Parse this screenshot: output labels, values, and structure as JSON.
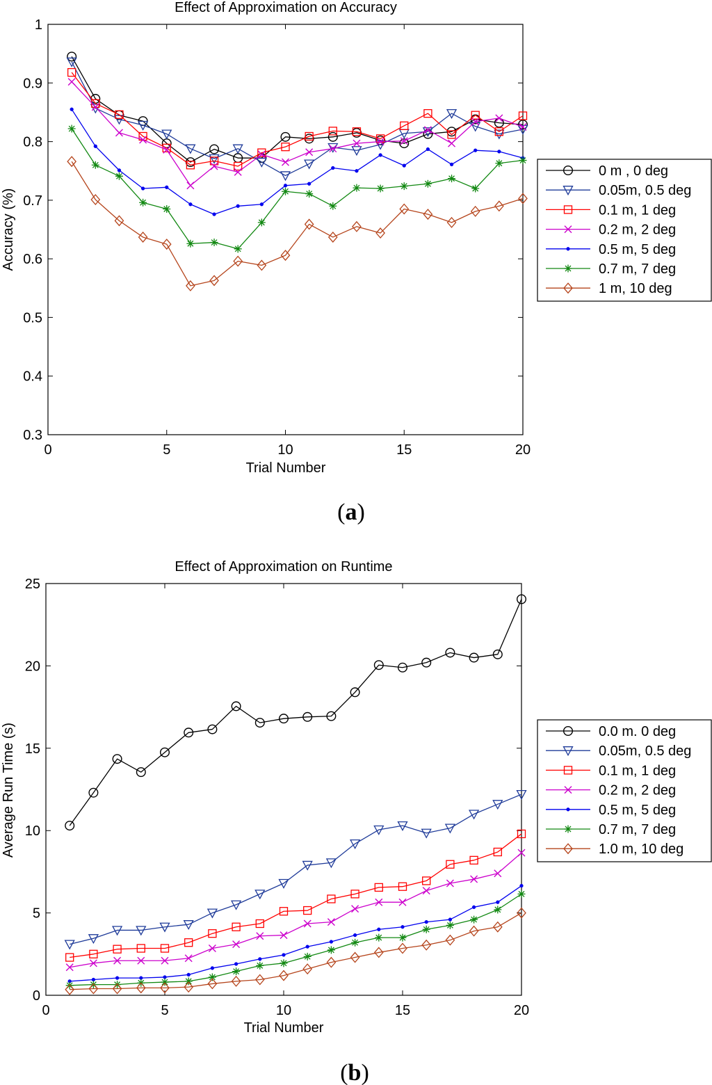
{
  "chart_data": [
    {
      "type": "line",
      "panel_label": "a",
      "title": "Effect of Approximation on Accuracy",
      "xlabel": "Trial Number",
      "ylabel": "Accuracy (%)",
      "xlim": [
        0,
        20
      ],
      "ylim": [
        0.3,
        1.0
      ],
      "xticks": [
        0,
        5,
        10,
        15,
        20
      ],
      "yticks": [
        0.3,
        0.4,
        0.5,
        0.6,
        0.7,
        0.8,
        0.9,
        1.0
      ],
      "ytick_labels": [
        "0.3",
        "0.4",
        "0.5",
        "0.6",
        "0.7",
        "0.8",
        "0.9",
        "1"
      ],
      "grid": false,
      "legend_position": "right",
      "x": [
        1,
        2,
        3,
        4,
        5,
        6,
        7,
        8,
        9,
        10,
        11,
        12,
        13,
        14,
        15,
        16,
        17,
        18,
        19,
        20
      ],
      "series": [
        {
          "name": "0 m , 0 deg",
          "color": "#000000",
          "marker": "circle",
          "values": [
            0.945,
            0.873,
            0.845,
            0.835,
            0.797,
            0.765,
            0.787,
            0.772,
            0.772,
            0.808,
            0.805,
            0.808,
            0.815,
            0.802,
            0.797,
            0.813,
            0.817,
            0.838,
            0.832,
            0.829
          ]
        },
        {
          "name": "0.05m, 0.5 deg",
          "color": "#1f3b99",
          "marker": "triangle-down",
          "values": [
            0.936,
            0.857,
            0.838,
            0.828,
            0.813,
            0.788,
            0.771,
            0.788,
            0.765,
            0.742,
            0.762,
            0.79,
            0.785,
            0.795,
            0.814,
            0.817,
            0.848,
            0.826,
            0.813,
            0.821
          ]
        },
        {
          "name": "0.1 m, 1 deg",
          "color": "#ff0000",
          "marker": "square",
          "values": [
            0.918,
            0.865,
            0.846,
            0.809,
            0.789,
            0.76,
            0.767,
            0.758,
            0.781,
            0.791,
            0.809,
            0.818,
            0.817,
            0.805,
            0.827,
            0.848,
            0.812,
            0.845,
            0.817,
            0.844
          ]
        },
        {
          "name": "0.2 m, 2 deg",
          "color": "#cc00cc",
          "marker": "x",
          "values": [
            0.902,
            0.859,
            0.815,
            0.803,
            0.786,
            0.725,
            0.758,
            0.748,
            0.778,
            0.765,
            0.782,
            0.788,
            0.797,
            0.8,
            0.801,
            0.82,
            0.797,
            0.834,
            0.84,
            0.825
          ]
        },
        {
          "name": "0.5 m, 5 deg",
          "color": "#0000ee",
          "marker": "dot",
          "values": [
            0.855,
            0.792,
            0.751,
            0.72,
            0.722,
            0.693,
            0.676,
            0.69,
            0.693,
            0.725,
            0.728,
            0.755,
            0.75,
            0.777,
            0.759,
            0.787,
            0.761,
            0.785,
            0.783,
            0.772
          ]
        },
        {
          "name": "0.7 m, 7 deg",
          "color": "#118811",
          "marker": "star",
          "values": [
            0.822,
            0.76,
            0.741,
            0.696,
            0.685,
            0.626,
            0.628,
            0.617,
            0.662,
            0.715,
            0.711,
            0.69,
            0.721,
            0.72,
            0.724,
            0.728,
            0.737,
            0.72,
            0.763,
            0.768
          ]
        },
        {
          "name": "1 m, 10 deg",
          "color": "#b5441b",
          "marker": "diamond",
          "values": [
            0.766,
            0.701,
            0.665,
            0.637,
            0.625,
            0.554,
            0.563,
            0.596,
            0.589,
            0.606,
            0.659,
            0.637,
            0.655,
            0.644,
            0.685,
            0.676,
            0.662,
            0.681,
            0.69,
            0.703
          ]
        }
      ]
    },
    {
      "type": "line",
      "panel_label": "b",
      "title": "Effect of Approximation on Runtime",
      "xlabel": "Trial Number",
      "ylabel": "Average Run Time (s)",
      "xlim": [
        0,
        20
      ],
      "ylim": [
        0,
        25
      ],
      "xticks": [
        0,
        5,
        10,
        15,
        20
      ],
      "yticks": [
        0,
        5,
        10,
        15,
        20,
        25
      ],
      "ytick_labels": [
        "0",
        "5",
        "10",
        "15",
        "20",
        "25"
      ],
      "grid": false,
      "legend_position": "right",
      "x": [
        1,
        2,
        3,
        4,
        5,
        6,
        7,
        8,
        9,
        10,
        11,
        12,
        13,
        14,
        15,
        16,
        17,
        18,
        19,
        20
      ],
      "series": [
        {
          "name": "0.0 m. 0 deg",
          "color": "#000000",
          "marker": "circle",
          "values": [
            10.3,
            12.3,
            14.35,
            13.55,
            14.75,
            15.95,
            16.15,
            17.55,
            16.55,
            16.8,
            16.9,
            16.95,
            18.4,
            20.05,
            19.9,
            20.2,
            20.8,
            20.5,
            20.7,
            24.05
          ]
        },
        {
          "name": "0.05m, 0.5 deg",
          "color": "#1f3b99",
          "marker": "triangle-down",
          "values": [
            3.1,
            3.45,
            3.95,
            3.95,
            4.15,
            4.3,
            5.0,
            5.5,
            6.15,
            6.8,
            7.9,
            8.05,
            9.2,
            10.05,
            10.3,
            9.85,
            10.15,
            11.0,
            11.6,
            12.2
          ]
        },
        {
          "name": "0.1 m, 1 deg",
          "color": "#ff0000",
          "marker": "square",
          "values": [
            2.3,
            2.5,
            2.8,
            2.85,
            2.85,
            3.2,
            3.75,
            4.15,
            4.35,
            5.1,
            5.15,
            5.85,
            6.15,
            6.55,
            6.6,
            6.95,
            7.95,
            8.2,
            8.7,
            9.8
          ]
        },
        {
          "name": "0.2 m, 2 deg",
          "color": "#cc00cc",
          "marker": "x",
          "values": [
            1.7,
            1.95,
            2.1,
            2.1,
            2.1,
            2.25,
            2.85,
            3.1,
            3.6,
            3.65,
            4.35,
            4.45,
            5.25,
            5.65,
            5.65,
            6.35,
            6.8,
            7.05,
            7.4,
            8.65
          ]
        },
        {
          "name": "0.5 m, 5 deg",
          "color": "#0000ee",
          "marker": "dot",
          "values": [
            0.85,
            0.95,
            1.05,
            1.05,
            1.1,
            1.25,
            1.65,
            1.9,
            2.2,
            2.45,
            2.95,
            3.25,
            3.65,
            4.0,
            4.15,
            4.45,
            4.6,
            5.35,
            5.65,
            6.65
          ]
        },
        {
          "name": "0.7 m, 7 deg",
          "color": "#118811",
          "marker": "star",
          "values": [
            0.6,
            0.65,
            0.65,
            0.75,
            0.8,
            0.85,
            1.1,
            1.45,
            1.8,
            1.95,
            2.35,
            2.75,
            3.2,
            3.5,
            3.5,
            4.0,
            4.25,
            4.6,
            5.2,
            6.15
          ]
        },
        {
          "name": "1.0 m, 10 deg",
          "color": "#b5441b",
          "marker": "diamond",
          "values": [
            0.35,
            0.4,
            0.4,
            0.45,
            0.45,
            0.5,
            0.7,
            0.85,
            0.95,
            1.2,
            1.6,
            2.0,
            2.3,
            2.6,
            2.85,
            3.05,
            3.35,
            3.9,
            4.15,
            5.0
          ]
        }
      ]
    }
  ]
}
